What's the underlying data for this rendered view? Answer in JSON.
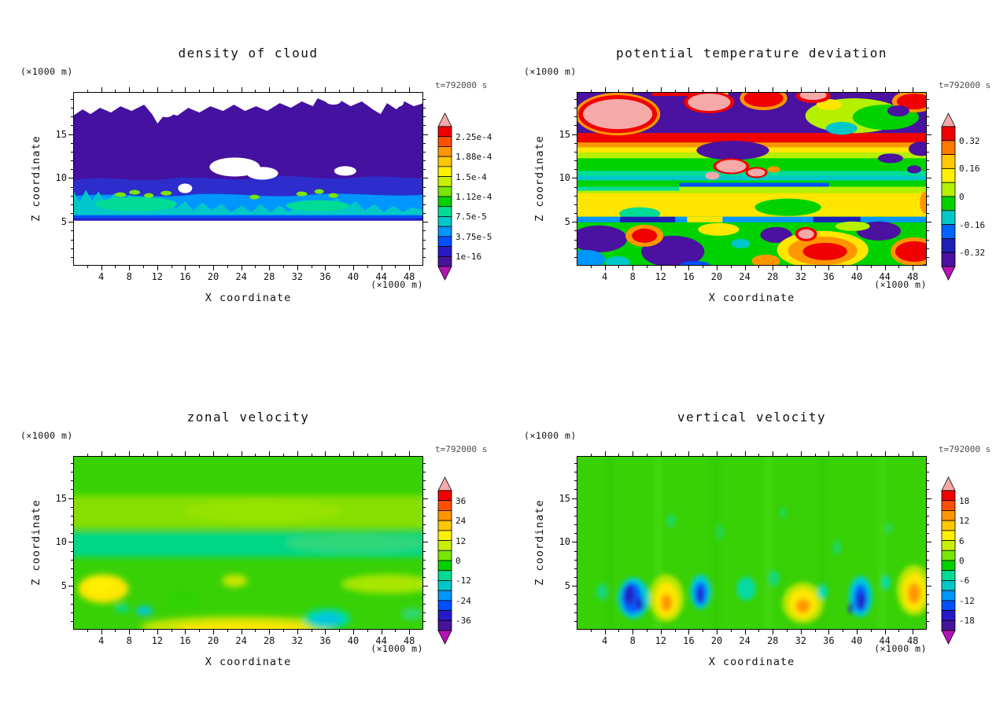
{
  "figure": {
    "background": "#ffffff",
    "time_label_color": "#4d4d4d"
  },
  "palette": {
    "rainbow14": [
      "#f00000",
      "#ff5000",
      "#ff9600",
      "#ffc800",
      "#fff000",
      "#c8f000",
      "#78e600",
      "#00d200",
      "#00dc96",
      "#00c8c8",
      "#0096ff",
      "#0050ff",
      "#2819c8",
      "#46149b"
    ],
    "over": "#f5a9a9",
    "under": "#b414b4"
  },
  "panels": [
    {
      "title": "density of cloud",
      "time_label": "t=792000 s",
      "z_unit_label": "(×1000 m)",
      "x_unit_label": "(×1000 m)",
      "z_axis_label": "Z coordinate",
      "x_axis_label": "X coordinate",
      "x_ticks": [
        4,
        8,
        12,
        16,
        20,
        24,
        28,
        32,
        36,
        40,
        44,
        48
      ],
      "z_ticks": [
        5,
        10,
        15
      ],
      "colorbar_labels": [
        "2.25e-4",
        "1.88e-4",
        "1.5e-4",
        "1.12e-4",
        "7.5e-5",
        "3.75e-5",
        "1e-16"
      ],
      "colorbar_colors": [
        "#f00000",
        "#ff5000",
        "#ff9600",
        "#ffc800",
        "#fff000",
        "#c8f000",
        "#78e600",
        "#00d200",
        "#00dc96",
        "#00c8c8",
        "#0096ff",
        "#0050ff",
        "#2819c8",
        "#46149b"
      ]
    },
    {
      "title": "potential temperature deviation",
      "time_label": "t=792000 s",
      "z_unit_label": "(×1000 m)",
      "x_unit_label": "(×1000 m)",
      "z_axis_label": "Z coordinate",
      "x_axis_label": "X coordinate",
      "x_ticks": [
        4,
        8,
        12,
        16,
        20,
        24,
        28,
        32,
        36,
        40,
        44,
        48
      ],
      "z_ticks": [
        5,
        10,
        15
      ],
      "colorbar_labels": [
        "0.32",
        "0.16",
        "0",
        "-0.16",
        "-0.32"
      ],
      "colorbar_colors": [
        "#f00000",
        "#ff7800",
        "#ffc800",
        "#fff000",
        "#b4f000",
        "#00d200",
        "#00c8c8",
        "#0064ff",
        "#1e1eb4",
        "#4b11a0"
      ]
    },
    {
      "title": "zonal velocity",
      "time_label": "t=792000 s",
      "z_unit_label": "(×1000 m)",
      "x_unit_label": "(×1000 m)",
      "z_axis_label": "Z coordinate",
      "x_axis_label": "X coordinate",
      "x_ticks": [
        4,
        8,
        12,
        16,
        20,
        24,
        28,
        32,
        36,
        40,
        44,
        48
      ],
      "z_ticks": [
        5,
        10,
        15
      ],
      "colorbar_labels": [
        "36",
        "24",
        "12",
        "0",
        "-12",
        "-24",
        "-36"
      ],
      "colorbar_colors": [
        "#f00000",
        "#ff5000",
        "#ff9600",
        "#ffc800",
        "#fff000",
        "#c8f000",
        "#78e600",
        "#00d200",
        "#00dc96",
        "#00c8c8",
        "#0096ff",
        "#0050ff",
        "#2819c8",
        "#46149b"
      ]
    },
    {
      "title": "vertical velocity",
      "time_label": "t=792000 s",
      "z_unit_label": "(×1000 m)",
      "x_unit_label": "(×1000 m)",
      "z_axis_label": "Z coordinate",
      "x_axis_label": "X coordinate",
      "x_ticks": [
        4,
        8,
        12,
        16,
        20,
        24,
        28,
        32,
        36,
        40,
        44,
        48
      ],
      "z_ticks": [
        5,
        10,
        15
      ],
      "colorbar_labels": [
        "18",
        "12",
        "6",
        "0",
        "-6",
        "-12",
        "-18"
      ],
      "colorbar_colors": [
        "#f00000",
        "#ff5000",
        "#ff9600",
        "#ffc800",
        "#fff000",
        "#c8f000",
        "#78e600",
        "#00d200",
        "#00dc96",
        "#00c8c8",
        "#0096ff",
        "#0050ff",
        "#2819c8",
        "#46149b"
      ]
    }
  ],
  "chart_data": [
    {
      "type": "heatmap",
      "title": "density of cloud",
      "time": "t=792000 s",
      "xlabel": "X coordinate (×1000 m)",
      "ylabel": "Z coordinate (×1000 m)",
      "x_range": [
        0,
        50
      ],
      "y_range": [
        0,
        19.8
      ],
      "x_ticks": [
        4,
        8,
        12,
        16,
        20,
        24,
        28,
        32,
        36,
        40,
        44,
        48
      ],
      "y_ticks": [
        5,
        10,
        15
      ],
      "contour_levels": [
        1e-16,
        3.75e-05,
        7.5e-05,
        0.000112,
        0.00015,
        0.000188,
        0.000225
      ],
      "legend_position": "right-colorbar",
      "grid": false,
      "description": "Stratiform cloud layer: near-zero values (dark purple) fill z≈8–18 km with a ragged cloud top near z≈17–18; blue band of ~3.75e-5 at z≈6–9; cyan band of ~7.5e-5–1.12e-4 with small green maxima at z≈5–8; sharp cloud base at z≈5; clear air (white) below z≈5 and in holes near x≈20–26 and x≈38 at z≈10–11."
    },
    {
      "type": "heatmap",
      "title": "potential temperature deviation",
      "time": "t=792000 s",
      "xlabel": "X coordinate (×1000 m)",
      "ylabel": "Z coordinate (×1000 m)",
      "x_range": [
        0,
        50
      ],
      "y_range": [
        0,
        19.8
      ],
      "x_ticks": [
        4,
        8,
        12,
        16,
        20,
        24,
        28,
        32,
        36,
        40,
        44,
        48
      ],
      "y_ticks": [
        5,
        10,
        15
      ],
      "contour_levels": [
        -0.32,
        -0.16,
        0,
        0.16,
        0.32
      ],
      "legend_position": "right-colorbar",
      "grid": false,
      "description": "Strongly layered deviation field: negative (purple, ≤ -0.32) regions near z≈15–18 interleaved with strong positive (pink, ≥ +0.32) patches and red/yellow filaments; a continuous warm red–yellow stripe at z≈14; alternating green/yellow bands at z≈5–13 with isolated pink maxima near z≈10–12; a thin cold cyan/blue line at z≈5; chaotic mixed positive and negative cells below z≈5."
    },
    {
      "type": "heatmap",
      "title": "zonal velocity",
      "time": "t=792000 s",
      "xlabel": "X coordinate (×1000 m)",
      "ylabel": "Z coordinate (×1000 m)",
      "x_range": [
        0,
        50
      ],
      "y_range": [
        0,
        19.8
      ],
      "x_ticks": [
        4,
        8,
        12,
        16,
        20,
        24,
        28,
        32,
        36,
        40,
        44,
        48
      ],
      "y_ticks": [
        5,
        10,
        15
      ],
      "contour_levels": [
        -36,
        -24,
        -12,
        0,
        12,
        24,
        36
      ],
      "legend_position": "right-colorbar",
      "grid": false,
      "description": "Field mostly near 0–6 m/s (green); slightly positive lighter-green band at z≈12–15; weakly negative teal band at z≈8.5–11; positive maxima up to ~+18 m/s (yellow) near x≈3–6 z≈4, x≈22 z≈3, and along the surface x≈10–37 z≈1; weak negative pockets (~ -12, cyan) near x≈10 z≈1 and x≈33–37 z≈1."
    },
    {
      "type": "heatmap",
      "title": "vertical velocity",
      "time": "t=792000 s",
      "xlabel": "X coordinate (×1000 m)",
      "ylabel": "Z coordinate (×1000 m)",
      "x_range": [
        0,
        50
      ],
      "y_range": [
        0,
        19.8
      ],
      "x_ticks": [
        4,
        8,
        12,
        16,
        20,
        24,
        28,
        32,
        36,
        40,
        44,
        48
      ],
      "y_ticks": [
        5,
        10,
        15
      ],
      "contour_levels": [
        -18,
        -12,
        -6,
        0,
        6,
        12,
        18
      ],
      "legend_position": "right-colorbar",
      "grid": false,
      "description": "Mostly near-zero (green) with faint vertical streaks aloft; below z≈6 alternating convective cells: downdrafts to ~ -15 m/s (blue/navy) near x≈7–9, 17, 40–41 and updrafts to ~ +12 m/s (yellow with orange cores) near x≈12, 31–33, 47–48."
    }
  ]
}
